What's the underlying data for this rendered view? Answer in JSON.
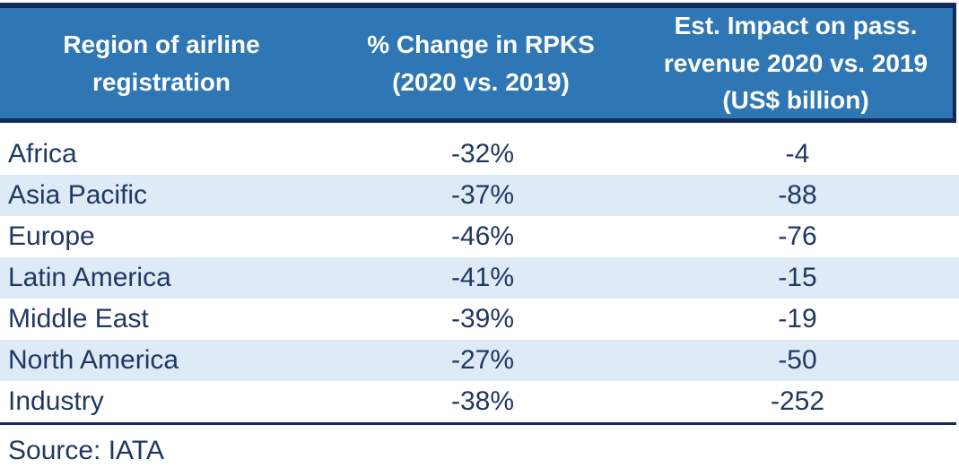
{
  "colors": {
    "header_bg": "#2F76B5",
    "header_text": "#FFFFFF",
    "border_navy": "#14295B",
    "row_alt_bg": "#DEEAF6",
    "body_text": "#1F3864"
  },
  "header": {
    "col_region": "Region of airline\nregistration",
    "col_rpk": "% Change in RPKS\n(2020 vs. 2019)",
    "col_revenue": "Est. Impact on pass.\nrevenue 2020 vs. 2019\n(US$ billion)"
  },
  "table": {
    "rows": [
      {
        "region": "Africa",
        "rpk_change": "-32%",
        "revenue_impact": "-4"
      },
      {
        "region": "Asia Pacific",
        "rpk_change": "-37%",
        "revenue_impact": "-88"
      },
      {
        "region": "Europe",
        "rpk_change": "-46%",
        "revenue_impact": "-76"
      },
      {
        "region": "Latin America",
        "rpk_change": "-41%",
        "revenue_impact": "-15"
      },
      {
        "region": "Middle East",
        "rpk_change": "-39%",
        "revenue_impact": "-19"
      },
      {
        "region": "North America",
        "rpk_change": "-27%",
        "revenue_impact": "-50"
      },
      {
        "region": "Industry",
        "rpk_change": "-38%",
        "revenue_impact": "-252"
      }
    ]
  },
  "source": "Source: IATA",
  "chart_data": {
    "type": "table",
    "title": "",
    "columns": [
      "Region of airline registration",
      "% Change in RPKS (2020 vs. 2019)",
      "Est. Impact on pass. revenue 2020 vs. 2019 (US$ billion)"
    ],
    "categories": [
      "Africa",
      "Asia Pacific",
      "Europe",
      "Latin America",
      "Middle East",
      "North America",
      "Industry"
    ],
    "series": [
      {
        "name": "% Change in RPKS (2020 vs. 2019)",
        "unit": "%",
        "values": [
          -32,
          -37,
          -46,
          -41,
          -39,
          -27,
          -38
        ]
      },
      {
        "name": "Est. Impact on pass. revenue 2020 vs. 2019 (US$ billion)",
        "unit": "US$ billion",
        "values": [
          -4,
          -88,
          -76,
          -15,
          -19,
          -50,
          -252
        ]
      }
    ],
    "source": "Source: IATA"
  }
}
